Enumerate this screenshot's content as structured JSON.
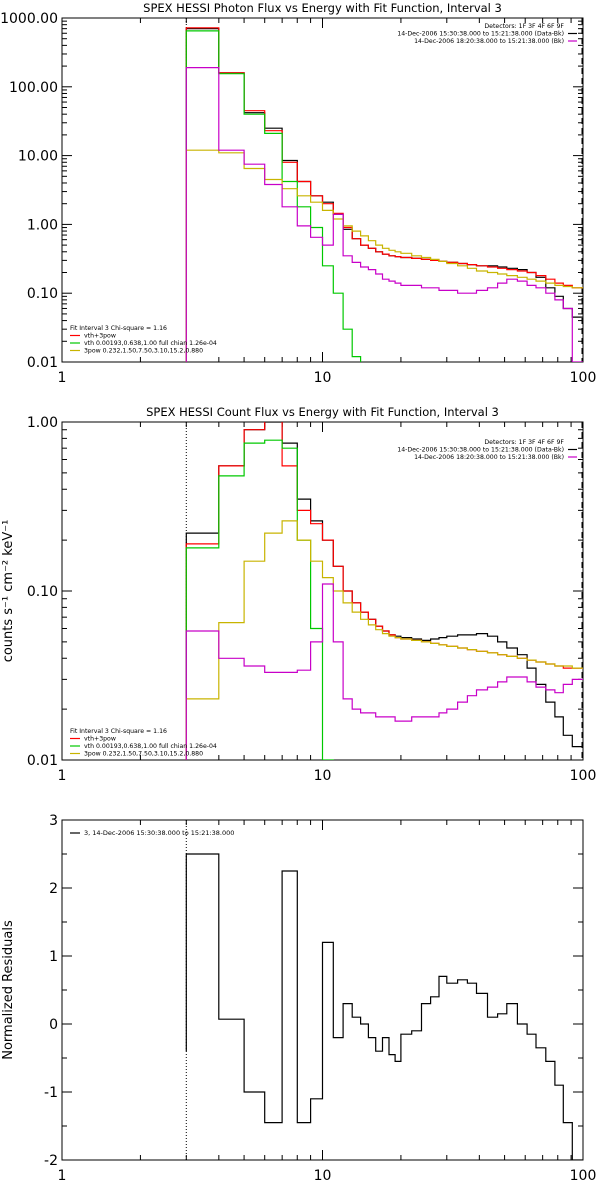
{
  "chart_data": [
    {
      "type": "line",
      "title": "SPEX HESSI Photon Flux vs Energy with Fit Function, Interval 3",
      "xlabel": "",
      "ylabel": "",
      "x_scale": "log",
      "y_scale": "log",
      "xlim": [
        1,
        100
      ],
      "ylim": [
        0.01,
        1000
      ],
      "x_ticks": [
        "1",
        "10",
        "100"
      ],
      "y_ticks": [
        "0.01",
        "0.10",
        "1.00",
        "10.00",
        "100.00",
        "1000.00"
      ],
      "legend_right": [
        "Detectors: 1F 3F 4F 6F 9F",
        "14-Dec-2006 15:30:38.000 to 15:21:38.000 (Data-Bk)",
        "14-Dec-2006 18:20:38.000 to 15:21:38.000 (Bk)"
      ],
      "legend_left": [
        "Fit Interval 3   Chi-square = 1.16",
        "vth+3pow",
        "vth 0.00193,0.638,1.00  full chian 1.26e-04",
        "3pow 0.232,1.50,7.50,3.10,15.2,0.880"
      ],
      "bin_edges": [
        3,
        4,
        5,
        6,
        7,
        8,
        9,
        10,
        11,
        12,
        13,
        14,
        15,
        16,
        17,
        18,
        19,
        20,
        22,
        24,
        26,
        28,
        30,
        33,
        36,
        39,
        43,
        47,
        51,
        56,
        61,
        66,
        72,
        78,
        84,
        91,
        100
      ],
      "series": [
        {
          "name": "Data-Bk",
          "color": "#000000",
          "values": [
            700,
            160,
            42,
            25,
            8.5,
            4.2,
            2.6,
            2.1,
            1.4,
            0.85,
            0.62,
            0.5,
            0.45,
            0.4,
            0.37,
            0.35,
            0.34,
            0.33,
            0.32,
            0.31,
            0.3,
            0.29,
            0.28,
            0.27,
            0.26,
            0.25,
            0.25,
            0.24,
            0.23,
            0.22,
            0.2,
            0.17,
            0.12,
            0.09,
            0.06,
            0.045
          ]
        },
        {
          "name": "vth+3pow",
          "color": "#ff0000",
          "values": [
            720,
            160,
            45,
            23,
            8.0,
            4.2,
            2.6,
            2.0,
            1.45,
            0.9,
            0.62,
            0.5,
            0.45,
            0.4,
            0.37,
            0.35,
            0.34,
            0.33,
            0.32,
            0.31,
            0.3,
            0.29,
            0.28,
            0.27,
            0.26,
            0.25,
            0.24,
            0.23,
            0.22,
            0.21,
            0.2,
            0.18,
            0.16,
            0.14,
            0.13,
            0.12
          ]
        },
        {
          "name": "vth",
          "color": "#00c800",
          "values": [
            650,
            155,
            40,
            21,
            4.2,
            1.8,
            0.9,
            0.25,
            0.1,
            0.03,
            0.012,
            0.006
          ]
        },
        {
          "name": "3pow",
          "color": "#c8b400",
          "values": [
            12,
            11,
            6.5,
            4.5,
            3.3,
            2.6,
            2.1,
            1.6,
            1.2,
            0.95,
            0.8,
            0.68,
            0.58,
            0.5,
            0.45,
            0.42,
            0.4,
            0.38,
            0.35,
            0.33,
            0.31,
            0.29,
            0.27,
            0.25,
            0.23,
            0.21,
            0.2,
            0.19,
            0.18,
            0.17,
            0.16,
            0.15,
            0.14,
            0.13,
            0.125,
            0.12
          ]
        },
        {
          "name": "Bk",
          "color": "#c800c8",
          "values": [
            190,
            12,
            7.5,
            3.8,
            1.8,
            0.95,
            0.65,
            0.5,
            1.4,
            0.35,
            0.28,
            0.24,
            0.22,
            0.19,
            0.16,
            0.15,
            0.14,
            0.13,
            0.13,
            0.12,
            0.12,
            0.11,
            0.11,
            0.1,
            0.1,
            0.11,
            0.12,
            0.14,
            0.16,
            0.15,
            0.13,
            0.12,
            0.1,
            0.08,
            0.06,
            0.01
          ]
        }
      ]
    },
    {
      "type": "line",
      "title": "SPEX HESSI Count Flux vs Energy with Fit Function, Interval 3",
      "xlabel": "",
      "ylabel": "counts s⁻¹ cm⁻² keV⁻¹",
      "x_scale": "log",
      "y_scale": "log",
      "xlim": [
        1,
        100
      ],
      "ylim": [
        0.01,
        1.0
      ],
      "x_ticks": [
        "1",
        "10",
        "100"
      ],
      "y_ticks": [
        "0.01",
        "0.10",
        "1.00"
      ],
      "legend_right": [
        "Detectors: 1F 3F 4F 6F 9F",
        "14-Dec-2006 15:30:38.000 to 15:21:38.000 (Data-Bk)",
        "14-Dec-2006 18:20:38.000 to 15:21:38.000 (Bk)"
      ],
      "legend_left": [
        "Fit Interval 3   Chi-square = 1.16",
        "vth+3pow",
        "vth 0.00193,0.638,1.00  full chian 1.26e-04",
        "3pow 0.232,1.50,7.50,3.10,15.2,0.880"
      ],
      "bin_edges": [
        3,
        4,
        5,
        6,
        7,
        8,
        9,
        10,
        11,
        12,
        13,
        14,
        15,
        16,
        17,
        18,
        19,
        20,
        22,
        24,
        26,
        28,
        30,
        33,
        36,
        39,
        43,
        47,
        51,
        56,
        61,
        66,
        72,
        78,
        84,
        91,
        100
      ],
      "series": [
        {
          "name": "Data-Bk",
          "color": "#000000",
          "values": [
            0.22,
            0.55,
            0.9,
            1.0,
            0.75,
            0.35,
            0.26,
            0.2,
            0.14,
            0.1,
            0.085,
            0.075,
            0.068,
            0.062,
            0.058,
            0.055,
            0.054,
            0.053,
            0.052,
            0.051,
            0.052,
            0.053,
            0.054,
            0.055,
            0.055,
            0.056,
            0.054,
            0.05,
            0.046,
            0.042,
            0.035,
            0.028,
            0.022,
            0.018,
            0.014,
            0.012
          ]
        },
        {
          "name": "vth+3pow",
          "color": "#ff0000",
          "values": [
            0.19,
            0.55,
            0.9,
            1.02,
            0.55,
            0.3,
            0.25,
            0.2,
            0.14,
            0.1,
            0.085,
            0.075,
            0.068,
            0.062,
            0.058,
            0.055,
            0.053,
            0.052,
            0.051,
            0.05,
            0.049,
            0.048,
            0.047,
            0.046,
            0.045,
            0.044,
            0.043,
            0.042,
            0.041,
            0.04,
            0.039,
            0.038,
            0.037,
            0.036,
            0.035,
            0.035
          ]
        },
        {
          "name": "vth",
          "color": "#00c800",
          "values": [
            0.18,
            0.48,
            0.75,
            0.78,
            0.7,
            0.2,
            0.06,
            0.01
          ]
        },
        {
          "name": "3pow",
          "color": "#c8b400",
          "values": [
            0.023,
            0.065,
            0.15,
            0.22,
            0.26,
            0.2,
            0.15,
            0.12,
            0.1,
            0.085,
            0.075,
            0.068,
            0.063,
            0.059,
            0.056,
            0.054,
            0.053,
            0.052,
            0.051,
            0.05,
            0.049,
            0.048,
            0.047,
            0.046,
            0.045,
            0.044,
            0.043,
            0.042,
            0.041,
            0.04,
            0.039,
            0.038,
            0.037,
            0.036,
            0.036,
            0.035
          ]
        },
        {
          "name": "Bk",
          "color": "#c800c8",
          "values": [
            0.058,
            0.04,
            0.036,
            0.033,
            0.033,
            0.034,
            0.05,
            0.11,
            0.05,
            0.023,
            0.02,
            0.019,
            0.019,
            0.018,
            0.018,
            0.018,
            0.017,
            0.017,
            0.018,
            0.018,
            0.018,
            0.019,
            0.02,
            0.022,
            0.024,
            0.026,
            0.027,
            0.029,
            0.031,
            0.031,
            0.029,
            0.027,
            0.026,
            0.025,
            0.028,
            0.03
          ]
        }
      ]
    },
    {
      "type": "line",
      "title": "",
      "xlabel": "",
      "ylabel": "Normalized Residuals",
      "x_scale": "log",
      "y_scale": "linear",
      "xlim": [
        1,
        100
      ],
      "ylim": [
        -2,
        3
      ],
      "x_ticks": [
        "1",
        "10",
        "100"
      ],
      "y_ticks": [
        "-2",
        "-1",
        "0",
        "1",
        "2",
        "3"
      ],
      "legend_left": [
        "3, 14-Dec-2006 15:30:38.000 to 15:21:38.000"
      ],
      "bin_edges": [
        3,
        4,
        5,
        6,
        7,
        8,
        9,
        10,
        11,
        12,
        13,
        14,
        15,
        16,
        17,
        18,
        19,
        20,
        22,
        24,
        26,
        28,
        30,
        33,
        36,
        39,
        43,
        47,
        51,
        56,
        61,
        66,
        72,
        78,
        84,
        91,
        100
      ],
      "series": [
        {
          "name": "3, 14-Dec-2006 15:30:38.000 to 15:21:38.000",
          "color": "#000000",
          "values": [
            2.5,
            0.07,
            -1.0,
            -1.45,
            2.25,
            -1.45,
            -1.1,
            1.2,
            -0.2,
            0.3,
            0.1,
            0.0,
            -0.2,
            -0.4,
            -0.2,
            -0.45,
            -0.55,
            -0.15,
            -0.1,
            0.3,
            0.4,
            0.7,
            0.6,
            0.65,
            0.6,
            0.45,
            0.1,
            0.15,
            0.3,
            0.0,
            -0.15,
            -0.35,
            -0.55,
            -0.9,
            -1.45,
            -2.0
          ]
        }
      ]
    }
  ]
}
